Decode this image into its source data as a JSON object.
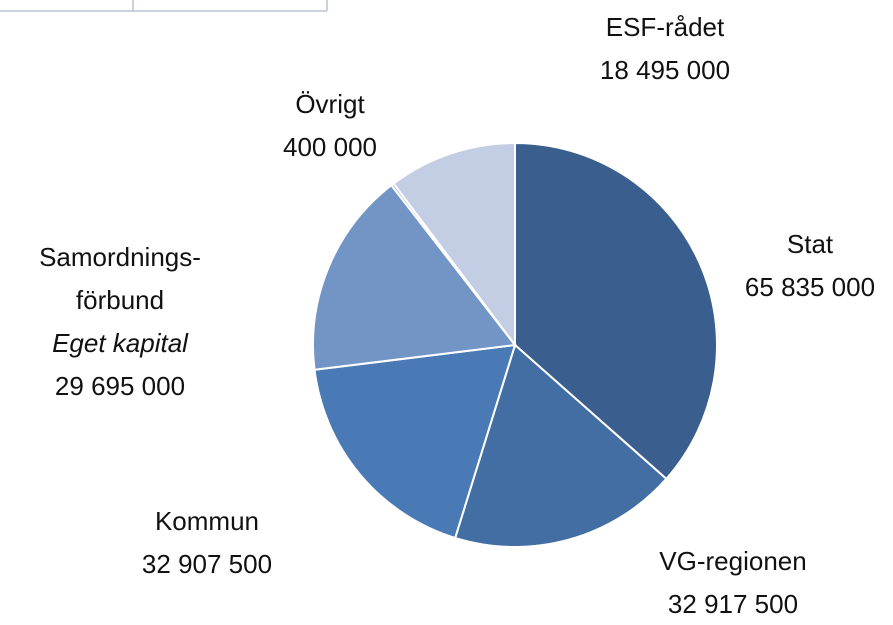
{
  "chart_data": {
    "type": "pie",
    "categories": [
      "Stat",
      "VG-regionen",
      "Kommun",
      "Samordnings-förbund",
      "Övrigt",
      "ESF-rådet"
    ],
    "values": [
      65835000,
      32917500,
      32907500,
      29695000,
      400000,
      18495000
    ],
    "value_labels": [
      "65 835 000",
      "32 917 500",
      "32 907 500",
      "29 695 000",
      "400 000",
      "18 495 000"
    ],
    "colors": [
      "#3a5f8e",
      "#426ea3",
      "#4a7ab5",
      "#7395c6",
      "#9fb2d6",
      "#c3cde3"
    ],
    "annotations": [
      {
        "category": 3,
        "text": "Eget kapital"
      }
    ]
  }
}
